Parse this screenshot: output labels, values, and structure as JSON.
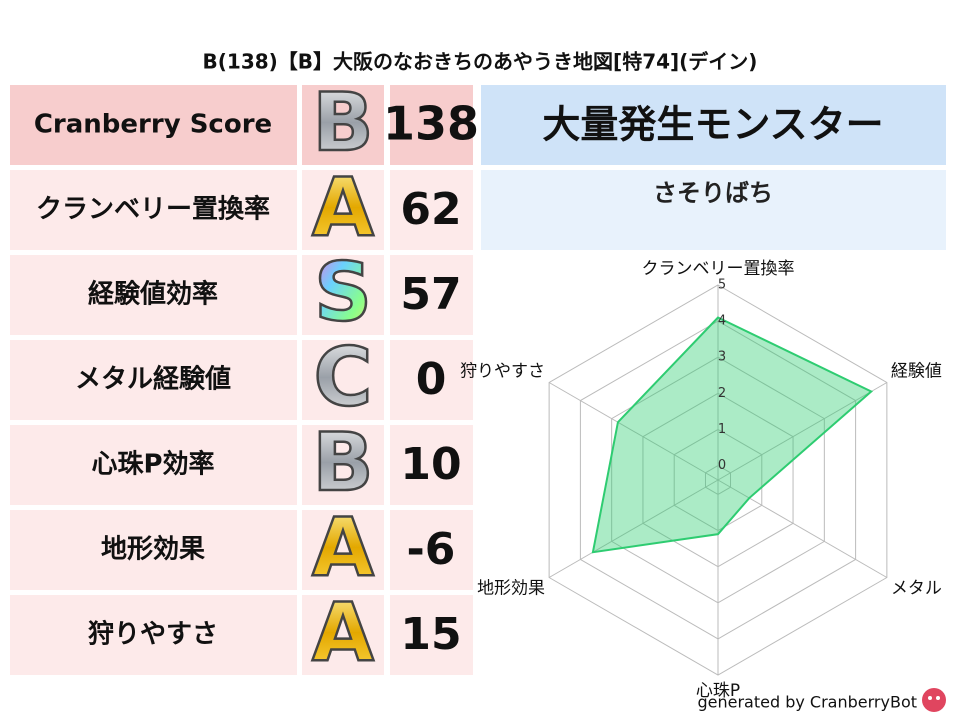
{
  "title": "B(138)【B】大阪のなおきちのあやうき地図[特74](デイン)",
  "table": {
    "rows": [
      {
        "label": "Cranberry Score",
        "grade": "B",
        "score": 138
      },
      {
        "label": "クランベリー置換率",
        "grade": "A",
        "score": 62
      },
      {
        "label": "経験値効率",
        "grade": "S",
        "score": 57
      },
      {
        "label": "メタル経験値",
        "grade": "C",
        "score": 0
      },
      {
        "label": "心珠P効率",
        "grade": "B",
        "score": 10
      },
      {
        "label": "地形効果",
        "grade": "A",
        "score": -6
      },
      {
        "label": "狩りやすさ",
        "grade": "A",
        "score": 15
      }
    ]
  },
  "monster": {
    "header": "大量発生モンスター",
    "name": "さそりばち"
  },
  "chart_data": {
    "type": "radar",
    "axes": [
      "クランベリー置換率",
      "経験値",
      "メタル",
      "心珠P",
      "地形効果",
      "狩りやすさ"
    ],
    "values": [
      4.1,
      4.5,
      0.6,
      1.1,
      3.6,
      2.8
    ],
    "rlim": [
      -0.4,
      5
    ],
    "rticks": [
      0,
      1,
      2,
      3,
      4,
      5
    ],
    "color": "#2ecc71",
    "grid": true
  },
  "footer": "generated by CranberryBot"
}
